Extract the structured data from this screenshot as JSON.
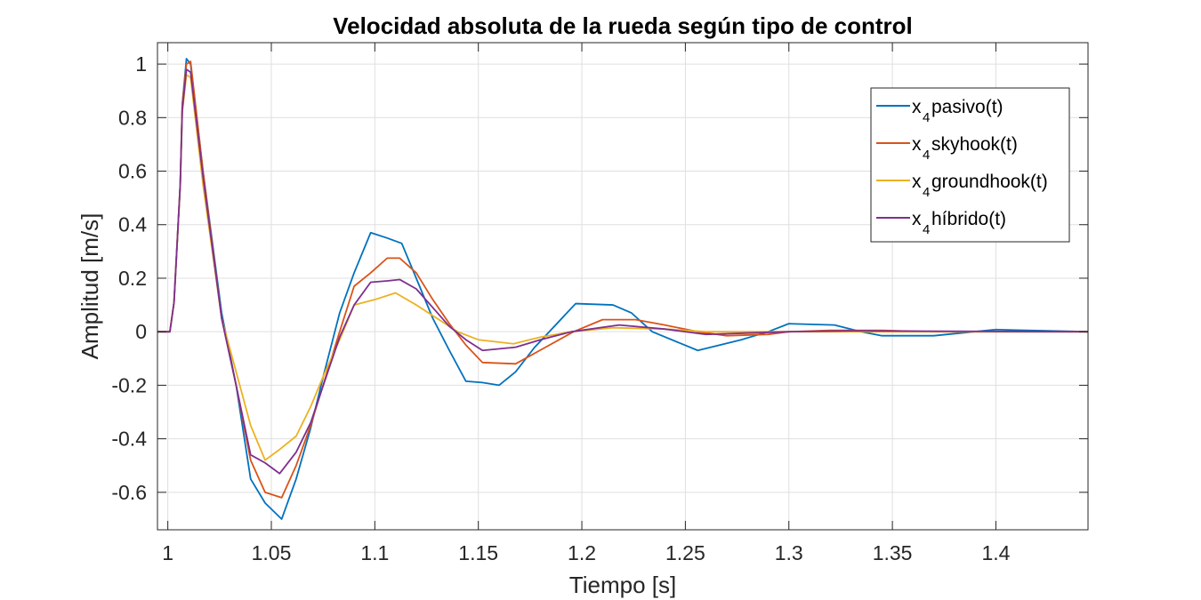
{
  "chart_data": {
    "type": "line",
    "title": "Velocidad absoluta de la rueda según tipo de control",
    "xlabel": "Tiempo [s]",
    "ylabel": "Amplitud [m/s]",
    "xlim": [
      0.995,
      1.4445
    ],
    "ylim": [
      -0.74,
      1.08
    ],
    "grid": true,
    "legend_position": "top-right",
    "xticks": [
      1,
      1.05,
      1.1,
      1.15,
      1.2,
      1.25,
      1.3,
      1.35,
      1.4
    ],
    "xtick_labels": [
      "1",
      "1.05",
      "1.1",
      "1.15",
      "1.2",
      "1.25",
      "1.3",
      "1.35",
      "1.4"
    ],
    "yticks": [
      -0.6,
      -0.4,
      -0.2,
      0,
      0.2,
      0.4,
      0.6,
      0.8,
      1
    ],
    "ytick_labels": [
      "-0.6",
      "-0.4",
      "-0.2",
      "0",
      "0.2",
      "0.4",
      "0.6",
      "0.8",
      "1"
    ],
    "series": [
      {
        "name": "x4pasivo(t)",
        "legend_base": "x",
        "legend_sub": "4",
        "legend_rest": "pasivo(t)",
        "color": "#0072BD",
        "points": [
          [
            0.995,
            0
          ],
          [
            1.001,
            0
          ],
          [
            1.003,
            0.11
          ],
          [
            1.006,
            0.55
          ],
          [
            1.007,
            0.85
          ],
          [
            1.009,
            1.02
          ],
          [
            1.011,
            1.0
          ],
          [
            1.017,
            0.6
          ],
          [
            1.026,
            0.07
          ],
          [
            1.033,
            -0.2
          ],
          [
            1.04,
            -0.55
          ],
          [
            1.047,
            -0.64
          ],
          [
            1.055,
            -0.7
          ],
          [
            1.062,
            -0.55
          ],
          [
            1.069,
            -0.36
          ],
          [
            1.075,
            -0.17
          ],
          [
            1.083,
            0.07
          ],
          [
            1.09,
            0.22
          ],
          [
            1.098,
            0.37
          ],
          [
            1.106,
            0.35
          ],
          [
            1.113,
            0.33
          ],
          [
            1.12,
            0.2
          ],
          [
            1.128,
            0.05
          ],
          [
            1.136,
            -0.07
          ],
          [
            1.144,
            -0.185
          ],
          [
            1.152,
            -0.19
          ],
          [
            1.16,
            -0.2
          ],
          [
            1.168,
            -0.15
          ],
          [
            1.177,
            -0.06
          ],
          [
            1.197,
            0.105
          ],
          [
            1.215,
            0.1
          ],
          [
            1.224,
            0.07
          ],
          [
            1.234,
            0.0
          ],
          [
            1.256,
            -0.07
          ],
          [
            1.277,
            -0.03
          ],
          [
            1.29,
            0.0
          ],
          [
            1.3,
            0.03
          ],
          [
            1.322,
            0.025
          ],
          [
            1.335,
            0.0
          ],
          [
            1.345,
            -0.015
          ],
          [
            1.37,
            -0.015
          ],
          [
            1.383,
            -0.005
          ],
          [
            1.4,
            0.008
          ],
          [
            1.41,
            0.006
          ],
          [
            1.4445,
            0.0
          ]
        ]
      },
      {
        "name": "x4skyhook(t)",
        "legend_base": "x",
        "legend_sub": "4",
        "legend_rest": "skyhook(t)",
        "color": "#D95319",
        "points": [
          [
            0.995,
            0
          ],
          [
            1.001,
            0
          ],
          [
            1.003,
            0.11
          ],
          [
            1.006,
            0.55
          ],
          [
            1.007,
            0.85
          ],
          [
            1.009,
            1.0
          ],
          [
            1.011,
            1.01
          ],
          [
            1.017,
            0.6
          ],
          [
            1.026,
            0.05
          ],
          [
            1.033,
            -0.2
          ],
          [
            1.04,
            -0.48
          ],
          [
            1.047,
            -0.6
          ],
          [
            1.055,
            -0.62
          ],
          [
            1.062,
            -0.5
          ],
          [
            1.069,
            -0.35
          ],
          [
            1.075,
            -0.2
          ],
          [
            1.083,
            0.0
          ],
          [
            1.09,
            0.17
          ],
          [
            1.098,
            0.22
          ],
          [
            1.106,
            0.275
          ],
          [
            1.112,
            0.275
          ],
          [
            1.12,
            0.22
          ],
          [
            1.128,
            0.12
          ],
          [
            1.136,
            0.03
          ],
          [
            1.144,
            -0.05
          ],
          [
            1.152,
            -0.115
          ],
          [
            1.168,
            -0.12
          ],
          [
            1.182,
            -0.06
          ],
          [
            1.196,
            0.0
          ],
          [
            1.21,
            0.045
          ],
          [
            1.226,
            0.045
          ],
          [
            1.24,
            0.025
          ],
          [
            1.256,
            0.0
          ],
          [
            1.27,
            -0.015
          ],
          [
            1.29,
            -0.01
          ],
          [
            1.3,
            0.0
          ],
          [
            1.32,
            0.005
          ],
          [
            1.345,
            0.005
          ],
          [
            1.37,
            0.0
          ],
          [
            1.4445,
            0.0
          ]
        ]
      },
      {
        "name": "x4groundhook(t)",
        "legend_base": "x",
        "legend_sub": "4",
        "legend_rest": "groundhook(t)",
        "color": "#EDB120",
        "points": [
          [
            0.995,
            0
          ],
          [
            1.001,
            0
          ],
          [
            1.003,
            0.11
          ],
          [
            1.006,
            0.55
          ],
          [
            1.007,
            0.82
          ],
          [
            1.009,
            0.96
          ],
          [
            1.011,
            0.95
          ],
          [
            1.017,
            0.55
          ],
          [
            1.026,
            0.05
          ],
          [
            1.033,
            -0.15
          ],
          [
            1.04,
            -0.35
          ],
          [
            1.047,
            -0.48
          ],
          [
            1.054,
            -0.44
          ],
          [
            1.062,
            -0.39
          ],
          [
            1.069,
            -0.28
          ],
          [
            1.076,
            -0.15
          ],
          [
            1.083,
            -0.03
          ],
          [
            1.09,
            0.1
          ],
          [
            1.1,
            0.12
          ],
          [
            1.11,
            0.145
          ],
          [
            1.12,
            0.1
          ],
          [
            1.132,
            0.04
          ],
          [
            1.14,
            0.0
          ],
          [
            1.15,
            -0.03
          ],
          [
            1.167,
            -0.045
          ],
          [
            1.18,
            -0.02
          ],
          [
            1.195,
            0.0
          ],
          [
            1.215,
            0.015
          ],
          [
            1.24,
            0.01
          ],
          [
            1.26,
            0.0
          ],
          [
            1.4445,
            0.0
          ]
        ]
      },
      {
        "name": "x4híbrido(t)",
        "legend_base": "x",
        "legend_sub": "4",
        "legend_rest": "híbrido(t)",
        "color": "#7E2F8E",
        "points": [
          [
            0.995,
            0
          ],
          [
            1.001,
            0
          ],
          [
            1.003,
            0.11
          ],
          [
            1.006,
            0.55
          ],
          [
            1.007,
            0.83
          ],
          [
            1.009,
            0.98
          ],
          [
            1.011,
            0.97
          ],
          [
            1.017,
            0.58
          ],
          [
            1.026,
            0.05
          ],
          [
            1.033,
            -0.2
          ],
          [
            1.04,
            -0.46
          ],
          [
            1.047,
            -0.49
          ],
          [
            1.054,
            -0.53
          ],
          [
            1.062,
            -0.45
          ],
          [
            1.069,
            -0.34
          ],
          [
            1.076,
            -0.18
          ],
          [
            1.083,
            -0.02
          ],
          [
            1.09,
            0.1
          ],
          [
            1.098,
            0.185
          ],
          [
            1.106,
            0.19
          ],
          [
            1.112,
            0.195
          ],
          [
            1.12,
            0.16
          ],
          [
            1.128,
            0.09
          ],
          [
            1.136,
            0.02
          ],
          [
            1.144,
            -0.03
          ],
          [
            1.152,
            -0.07
          ],
          [
            1.168,
            -0.058
          ],
          [
            1.18,
            -0.03
          ],
          [
            1.195,
            0.0
          ],
          [
            1.218,
            0.025
          ],
          [
            1.24,
            0.01
          ],
          [
            1.26,
            -0.01
          ],
          [
            1.28,
            -0.005
          ],
          [
            1.3,
            0.0
          ],
          [
            1.33,
            0.003
          ],
          [
            1.4445,
            0.0
          ]
        ]
      }
    ]
  }
}
